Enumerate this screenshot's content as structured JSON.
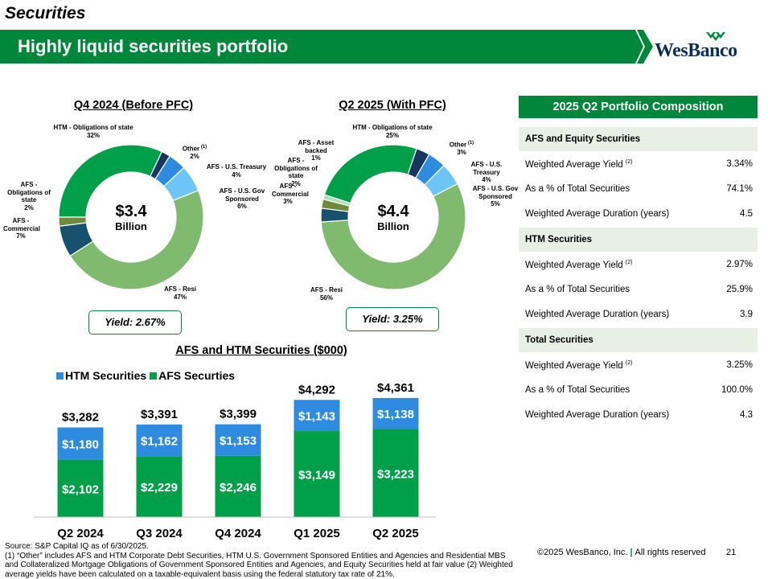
{
  "header": {
    "section": "Securities",
    "title": "Highly liquid securities portfolio",
    "logo": "WesBanco"
  },
  "colors": {
    "dark_green": "#00873c",
    "light_green": "#7fba6e",
    "navy": "#17375e",
    "blue": "#2f8be0",
    "light_blue": "#6cc5f5",
    "olive": "#6f8a3a",
    "pale_green": "#a9e3b4"
  },
  "chart_data": [
    {
      "type": "pie",
      "title": "Q4 2024 (Before PFC)",
      "center_amount": "$3.4",
      "center_unit": "Billion",
      "yield_label": "Yield: 2.67%",
      "slices": [
        {
          "label": "HTM - Obligations of state",
          "pct_label": "32%",
          "value": 32,
          "color": "#00a04a"
        },
        {
          "label": "Other",
          "footnote_mark": "(1)",
          "pct_label": "2%",
          "value": 2,
          "color": "#17375e"
        },
        {
          "label": "AFS - U.S. Treasury",
          "pct_label": "4%",
          "value": 4,
          "color": "#2f8be0"
        },
        {
          "label": "AFS - U.S. Gov Sponsored",
          "pct_label": "6%",
          "value": 6,
          "color": "#6cc5f5"
        },
        {
          "label": "AFS - Resi",
          "pct_label": "47%",
          "value": 47,
          "color": "#7fba6e"
        },
        {
          "label": "AFS - Commercial",
          "pct_label": "7%",
          "value": 7,
          "color": "#17516e"
        },
        {
          "label": "AFS - Obligations of state",
          "pct_label": "2%",
          "value": 2,
          "color": "#6f8a3a"
        }
      ]
    },
    {
      "type": "pie",
      "title": "Q2 2025 (With PFC)",
      "center_amount": "$4.4",
      "center_unit": "Billion",
      "yield_label": "Yield: 3.25%",
      "slices": [
        {
          "label": "HTM - Obligations of state",
          "pct_label": "25%",
          "value": 25,
          "color": "#00a04a"
        },
        {
          "label": "Other",
          "footnote_mark": "(1)",
          "pct_label": "3%",
          "value": 3,
          "color": "#17375e"
        },
        {
          "label": "AFS - U.S. Treasury",
          "pct_label": "4%",
          "value": 4,
          "color": "#2f8be0"
        },
        {
          "label": "AFS - U.S. Gov Sponsored",
          "pct_label": "5%",
          "value": 5,
          "color": "#6cc5f5"
        },
        {
          "label": "AFS - Resi",
          "pct_label": "56%",
          "value": 56,
          "color": "#7fba6e"
        },
        {
          "label": "AFS - Commercial",
          "pct_label": "3%",
          "value": 3,
          "color": "#17516e"
        },
        {
          "label": "AFS - Obligations of state",
          "pct_label": "2%",
          "value": 2,
          "color": "#6f8a3a"
        },
        {
          "label": "AFS - Asset backed",
          "pct_label": "1%",
          "value": 1,
          "color": "#a9e3b4"
        }
      ]
    },
    {
      "type": "bar",
      "stacked": true,
      "title": "AFS and HTM Securities ($000)",
      "categories": [
        "Q2 2024",
        "Q3 2024",
        "Q4 2024",
        "Q1 2025",
        "Q2 2025"
      ],
      "series": [
        {
          "name": "AFS Securties",
          "values": [
            2102,
            2229,
            2246,
            3149,
            3223
          ],
          "labels": [
            "$2,102",
            "$2,229",
            "$2,246",
            "$3,149",
            "$3,223"
          ],
          "color": "#00a04a"
        },
        {
          "name": "HTM Securities",
          "values": [
            1180,
            1162,
            1153,
            1143,
            1138
          ],
          "labels": [
            "$1,180",
            "$1,162",
            "$1,153",
            "$1,143",
            "$1,138"
          ],
          "color": "#2f8be0"
        }
      ],
      "totals": [
        "$3,282",
        "$3,391",
        "$3,399",
        "$4,292",
        "$4,361"
      ],
      "legend_order": [
        "HTM Securities",
        "AFS Securties"
      ],
      "legend_position": "top-left",
      "ylim": [
        0,
        4800
      ]
    }
  ],
  "portfolio": {
    "title": "2025 Q2 Portfolio Composition",
    "sections": [
      {
        "name": "AFS and Equity Securities",
        "rows": [
          {
            "label": "Weighted Average Yield",
            "sup": "(2)",
            "value": "3.34%"
          },
          {
            "label": "As a % of Total Securities",
            "sup": "",
            "value": "74.1%"
          },
          {
            "label": "Weighted Average Duration (years)",
            "sup": "",
            "value": "4.5"
          }
        ]
      },
      {
        "name": "HTM Securities",
        "rows": [
          {
            "label": "Weighted Average Yield",
            "sup": "(2)",
            "value": "2.97%"
          },
          {
            "label": "As a % of Total Securities",
            "sup": "",
            "value": "25.9%"
          },
          {
            "label": "Weighted Average Duration (years)",
            "sup": "",
            "value": "3.9"
          }
        ]
      },
      {
        "name": "Total Securities",
        "rows": [
          {
            "label": "Weighted Average Yield",
            "sup": "(2)",
            "value": "3.25%"
          },
          {
            "label": "As a % of Total Securities",
            "sup": "",
            "value": "100.0%"
          },
          {
            "label": "Weighted Average Duration (years)",
            "sup": "",
            "value": "4.3"
          }
        ]
      }
    ]
  },
  "footer": {
    "source": "Source: S&P Capital IQ as of 6/30/2025.",
    "note": "(1) “Other” includes AFS and HTM Corporate Debt Securities, HTM U.S. Government Sponsored Entities and Agencies and Residential MBS and Collateralized Mortgage Obligations of Government Sponsored Entities and Agencies, and Equity Securities held at fair value (2) Weighted average yields have been calculated on a taxable-equivalent basis using the federal statutory tax rate of 21%.",
    "copyright": "©2025 WesBanco, Inc.",
    "separator": "|",
    "rights": "All rights reserved",
    "page": "21"
  }
}
